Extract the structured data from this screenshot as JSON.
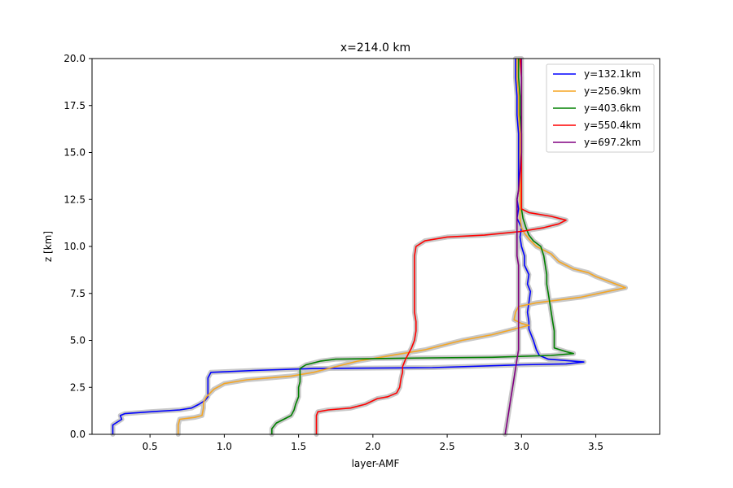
{
  "chart_data": {
    "type": "line",
    "title": "x=214.0 km",
    "xlabel": "layer-AMF",
    "ylabel": "z [km]",
    "xlim": [
      0.11,
      3.93
    ],
    "ylim": [
      0,
      20
    ],
    "xticks": [
      "0.5",
      "1.0",
      "1.5",
      "2.0",
      "2.5",
      "3.0",
      "3.5"
    ],
    "xtick_values": [
      0.5,
      1.0,
      1.5,
      2.0,
      2.5,
      3.0,
      3.5
    ],
    "yticks": [
      "0.0",
      "2.5",
      "5.0",
      "7.5",
      "10.0",
      "12.5",
      "15.0",
      "17.5",
      "20.0"
    ],
    "ytick_values": [
      0.0,
      2.5,
      5.0,
      7.5,
      10.0,
      12.5,
      15.0,
      17.5,
      20.0
    ],
    "grid": false,
    "legend_position": "top-right",
    "uncertainty_band_color": "#c8c8c8",
    "series": [
      {
        "name": "y=132.1km",
        "color": "#0000ff",
        "points": [
          [
            0.25,
            0
          ],
          [
            0.25,
            0.5
          ],
          [
            0.31,
            0.8
          ],
          [
            0.3,
            1.0
          ],
          [
            0.33,
            1.1
          ],
          [
            0.5,
            1.2
          ],
          [
            0.7,
            1.3
          ],
          [
            0.78,
            1.4
          ],
          [
            0.83,
            1.6
          ],
          [
            0.87,
            1.8
          ],
          [
            0.89,
            2.0
          ],
          [
            0.89,
            2.5
          ],
          [
            0.89,
            3.0
          ],
          [
            0.91,
            3.3
          ],
          [
            1.2,
            3.4
          ],
          [
            1.6,
            3.5
          ],
          [
            2.4,
            3.55
          ],
          [
            3.0,
            3.7
          ],
          [
            3.3,
            3.75
          ],
          [
            3.42,
            3.85
          ],
          [
            3.18,
            4.0
          ],
          [
            3.12,
            4.2
          ],
          [
            3.1,
            4.5
          ],
          [
            3.08,
            5.0
          ],
          [
            3.05,
            5.6
          ],
          [
            3.05,
            6.0
          ],
          [
            3.04,
            6.5
          ],
          [
            3.05,
            7.0
          ],
          [
            3.06,
            7.6
          ],
          [
            3.04,
            8.0
          ],
          [
            3.05,
            8.5
          ],
          [
            3.02,
            9.0
          ],
          [
            3.02,
            9.5
          ],
          [
            3.0,
            10.0
          ],
          [
            2.99,
            10.5
          ],
          [
            3.0,
            11.0
          ],
          [
            2.97,
            11.5
          ],
          [
            2.98,
            12.0
          ],
          [
            2.97,
            12.5
          ],
          [
            2.98,
            13.0
          ],
          [
            2.98,
            14.0
          ],
          [
            2.98,
            15.0
          ],
          [
            2.98,
            16.0
          ],
          [
            2.97,
            17.0
          ],
          [
            2.97,
            18.0
          ],
          [
            2.96,
            19.0
          ],
          [
            2.96,
            20.0
          ]
        ]
      },
      {
        "name": "y=256.9km",
        "color": "#f5a623",
        "points": [
          [
            0.69,
            0
          ],
          [
            0.69,
            0.5
          ],
          [
            0.7,
            0.8
          ],
          [
            0.8,
            0.9
          ],
          [
            0.85,
            1.0
          ],
          [
            0.86,
            1.4
          ],
          [
            0.86,
            1.7
          ],
          [
            0.88,
            2.0
          ],
          [
            0.93,
            2.4
          ],
          [
            1.0,
            2.7
          ],
          [
            1.15,
            2.9
          ],
          [
            1.3,
            3.0
          ],
          [
            1.45,
            3.1
          ],
          [
            1.6,
            3.3
          ],
          [
            1.7,
            3.5
          ],
          [
            1.8,
            3.7
          ],
          [
            1.9,
            3.9
          ],
          [
            2.05,
            4.1
          ],
          [
            2.2,
            4.3
          ],
          [
            2.35,
            4.5
          ],
          [
            2.45,
            4.7
          ],
          [
            2.6,
            5.0
          ],
          [
            2.8,
            5.3
          ],
          [
            2.95,
            5.6
          ],
          [
            3.05,
            5.8
          ],
          [
            3.0,
            5.9
          ],
          [
            2.95,
            6.1
          ],
          [
            2.96,
            6.5
          ],
          [
            2.98,
            6.8
          ],
          [
            3.1,
            7.0
          ],
          [
            3.4,
            7.3
          ],
          [
            3.7,
            7.8
          ],
          [
            3.6,
            8.1
          ],
          [
            3.5,
            8.4
          ],
          [
            3.45,
            8.6
          ],
          [
            3.35,
            8.8
          ],
          [
            3.25,
            9.2
          ],
          [
            3.2,
            9.6
          ],
          [
            3.1,
            10.0
          ],
          [
            3.05,
            10.4
          ],
          [
            3.02,
            10.7
          ],
          [
            3.0,
            11.0
          ],
          [
            2.99,
            11.5
          ],
          [
            2.99,
            12.0
          ],
          [
            2.99,
            12.5
          ],
          [
            2.99,
            13.0
          ],
          [
            2.99,
            14.0
          ],
          [
            2.99,
            15.0
          ],
          [
            2.99,
            16.0
          ],
          [
            2.98,
            17.0
          ],
          [
            2.98,
            18.0
          ],
          [
            2.97,
            19.0
          ],
          [
            2.97,
            20.0
          ]
        ]
      },
      {
        "name": "y=403.6km",
        "color": "#008000",
        "points": [
          [
            1.32,
            0
          ],
          [
            1.32,
            0.3
          ],
          [
            1.35,
            0.6
          ],
          [
            1.4,
            0.8
          ],
          [
            1.45,
            1.0
          ],
          [
            1.47,
            1.3
          ],
          [
            1.48,
            1.6
          ],
          [
            1.49,
            1.8
          ],
          [
            1.5,
            2.0
          ],
          [
            1.5,
            2.5
          ],
          [
            1.51,
            2.8
          ],
          [
            1.51,
            3.2
          ],
          [
            1.51,
            3.5
          ],
          [
            1.55,
            3.7
          ],
          [
            1.65,
            3.9
          ],
          [
            1.75,
            4.0
          ],
          [
            2.2,
            4.05
          ],
          [
            2.8,
            4.1
          ],
          [
            3.2,
            4.2
          ],
          [
            3.35,
            4.3
          ],
          [
            3.3,
            4.4
          ],
          [
            3.22,
            4.6
          ],
          [
            3.22,
            5.0
          ],
          [
            3.22,
            5.5
          ],
          [
            3.21,
            6.0
          ],
          [
            3.2,
            6.5
          ],
          [
            3.19,
            7.0
          ],
          [
            3.18,
            7.5
          ],
          [
            3.17,
            8.0
          ],
          [
            3.17,
            8.5
          ],
          [
            3.16,
            9.0
          ],
          [
            3.15,
            9.5
          ],
          [
            3.13,
            10.0
          ],
          [
            3.08,
            10.3
          ],
          [
            3.05,
            10.6
          ],
          [
            3.03,
            11.0
          ],
          [
            3.01,
            11.5
          ],
          [
            3.0,
            12.0
          ],
          [
            3.0,
            12.5
          ],
          [
            3.0,
            13.0
          ],
          [
            3.0,
            14.0
          ],
          [
            3.0,
            15.0
          ],
          [
            3.0,
            16.0
          ],
          [
            2.99,
            17.0
          ],
          [
            2.99,
            18.0
          ],
          [
            2.98,
            19.0
          ],
          [
            2.98,
            20.0
          ]
        ]
      },
      {
        "name": "y=550.4km",
        "color": "#ff0000",
        "points": [
          [
            1.62,
            0
          ],
          [
            1.62,
            0.5
          ],
          [
            1.62,
            1.0
          ],
          [
            1.63,
            1.2
          ],
          [
            1.7,
            1.3
          ],
          [
            1.85,
            1.4
          ],
          [
            1.95,
            1.6
          ],
          [
            2.03,
            1.9
          ],
          [
            2.1,
            2.0
          ],
          [
            2.16,
            2.2
          ],
          [
            2.18,
            2.5
          ],
          [
            2.19,
            3.0
          ],
          [
            2.2,
            3.3
          ],
          [
            2.2,
            3.6
          ],
          [
            2.22,
            4.0
          ],
          [
            2.24,
            4.3
          ],
          [
            2.26,
            4.6
          ],
          [
            2.28,
            5.0
          ],
          [
            2.29,
            5.5
          ],
          [
            2.29,
            6.0
          ],
          [
            2.28,
            6.5
          ],
          [
            2.28,
            7.0
          ],
          [
            2.28,
            7.5
          ],
          [
            2.28,
            8.0
          ],
          [
            2.28,
            8.5
          ],
          [
            2.28,
            9.0
          ],
          [
            2.28,
            9.5
          ],
          [
            2.29,
            10.0
          ],
          [
            2.35,
            10.3
          ],
          [
            2.5,
            10.5
          ],
          [
            2.75,
            10.6
          ],
          [
            3.0,
            10.8
          ],
          [
            3.15,
            11.0
          ],
          [
            3.25,
            11.2
          ],
          [
            3.3,
            11.4
          ],
          [
            3.2,
            11.6
          ],
          [
            3.05,
            11.8
          ],
          [
            3.0,
            12.0
          ],
          [
            3.0,
            12.5
          ],
          [
            3.0,
            13.0
          ],
          [
            3.0,
            14.0
          ],
          [
            3.0,
            15.0
          ],
          [
            3.0,
            16.0
          ],
          [
            3.0,
            17.0
          ],
          [
            3.0,
            18.0
          ],
          [
            3.0,
            19.0
          ],
          [
            2.99,
            20.0
          ]
        ]
      },
      {
        "name": "y=697.2km",
        "color": "#800080",
        "points": [
          [
            2.89,
            0
          ],
          [
            2.9,
            0.5
          ],
          [
            2.91,
            1.0
          ],
          [
            2.92,
            1.5
          ],
          [
            2.93,
            2.0
          ],
          [
            2.94,
            2.5
          ],
          [
            2.95,
            3.0
          ],
          [
            2.96,
            3.5
          ],
          [
            2.97,
            4.0
          ],
          [
            2.98,
            4.5
          ],
          [
            2.98,
            5.0
          ],
          [
            2.98,
            5.5
          ],
          [
            2.98,
            6.0
          ],
          [
            2.98,
            6.5
          ],
          [
            2.98,
            7.0
          ],
          [
            2.98,
            7.5
          ],
          [
            2.98,
            8.0
          ],
          [
            2.98,
            8.5
          ],
          [
            2.98,
            9.0
          ],
          [
            2.97,
            9.5
          ],
          [
            2.97,
            10.0
          ],
          [
            2.97,
            10.5
          ],
          [
            2.97,
            11.0
          ],
          [
            2.97,
            11.5
          ],
          [
            2.97,
            12.0
          ],
          [
            2.97,
            12.5
          ],
          [
            2.98,
            13.0
          ],
          [
            2.99,
            14.0
          ],
          [
            3.0,
            15.0
          ],
          [
            3.0,
            16.0
          ],
          [
            3.0,
            17.0
          ],
          [
            3.0,
            18.0
          ],
          [
            3.0,
            19.0
          ],
          [
            3.0,
            20.0
          ]
        ]
      }
    ]
  }
}
